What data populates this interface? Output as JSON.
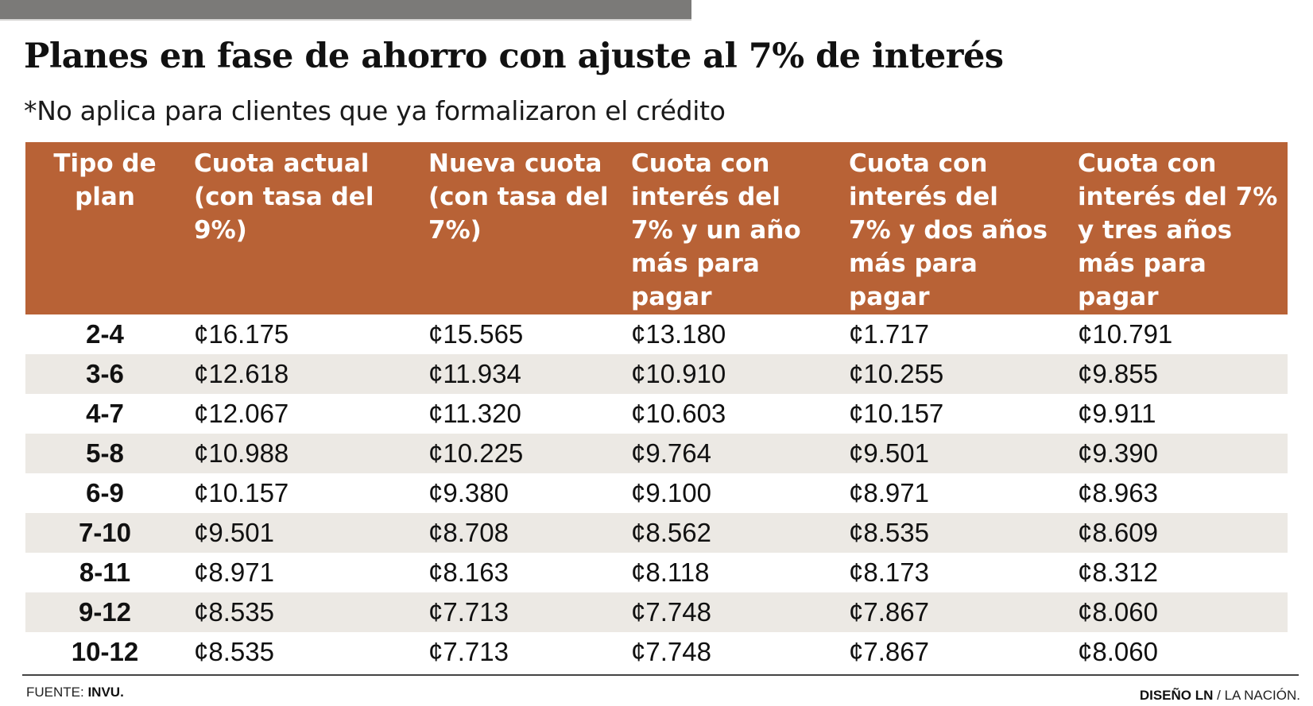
{
  "title": "Planes en fase de ahorro con ajuste al 7% de interés",
  "subtitle": "*No aplica para clientes que ya formalizaron el crédito",
  "colors": {
    "header_bg": "#b86236",
    "zebra_bg": "#ece9e4",
    "top_bar": "#7b7a78"
  },
  "table": {
    "columns": [
      {
        "label": "Tipo de plan",
        "lines": [
          "Tipo de",
          "plan"
        ]
      },
      {
        "label": "Cuota actual (con tasa del 9%)",
        "lines": [
          "Cuota actual",
          "(con tasa del",
          "9%)"
        ]
      },
      {
        "label": "Nueva cuota (con tasa del 7%)",
        "lines": [
          "Nueva cuota",
          "(con tasa del",
          "7%)"
        ]
      },
      {
        "label": "Cuota con interés del 7% y un año más para pagar",
        "lines": [
          "Cuota con",
          "interés del",
          "7% y un año",
          "más para",
          "pagar"
        ]
      },
      {
        "label": "Cuota con interés del 7% y dos años más para pagar",
        "lines": [
          "Cuota con",
          "interés del",
          "7% y dos años",
          "más para",
          "pagar"
        ]
      },
      {
        "label": "Cuota con interés del 7% y tres años más para pagar",
        "lines": [
          "Cuota con",
          "interés del 7%",
          "y tres años",
          "más para",
          "pagar"
        ]
      }
    ],
    "rows": [
      [
        "2-4",
        "¢16.175",
        "¢15.565",
        "¢13.180",
        "¢1.717",
        "¢10.791"
      ],
      [
        "3-6",
        "¢12.618",
        "¢11.934",
        "¢10.910",
        "¢10.255",
        "¢9.855"
      ],
      [
        "4-7",
        "¢12.067",
        "¢11.320",
        "¢10.603",
        "¢10.157",
        "¢9.911"
      ],
      [
        "5-8",
        "¢10.988",
        "¢10.225",
        "¢9.764",
        "¢9.501",
        "¢9.390"
      ],
      [
        "6-9",
        "¢10.157",
        "¢9.380",
        "¢9.100",
        "¢8.971",
        "¢8.963"
      ],
      [
        "7-10",
        "¢9.501",
        "¢8.708",
        "¢8.562",
        "¢8.535",
        "¢8.609"
      ],
      [
        "8-11",
        "¢8.971",
        "¢8.163",
        "¢8.118",
        "¢8.173",
        "¢8.312"
      ],
      [
        "9-12",
        "¢8.535",
        "¢7.713",
        "¢7.748",
        "¢7.867",
        "¢8.060"
      ],
      [
        "10-12",
        "¢8.535",
        "¢7.713",
        "¢7.748",
        "¢7.867",
        "¢8.060"
      ]
    ]
  },
  "footer": {
    "source_label": "FUENTE: ",
    "source_value": "INVU.",
    "credit_bold": "DISEÑO LN",
    "credit_rest": " / LA NACIÓN."
  }
}
